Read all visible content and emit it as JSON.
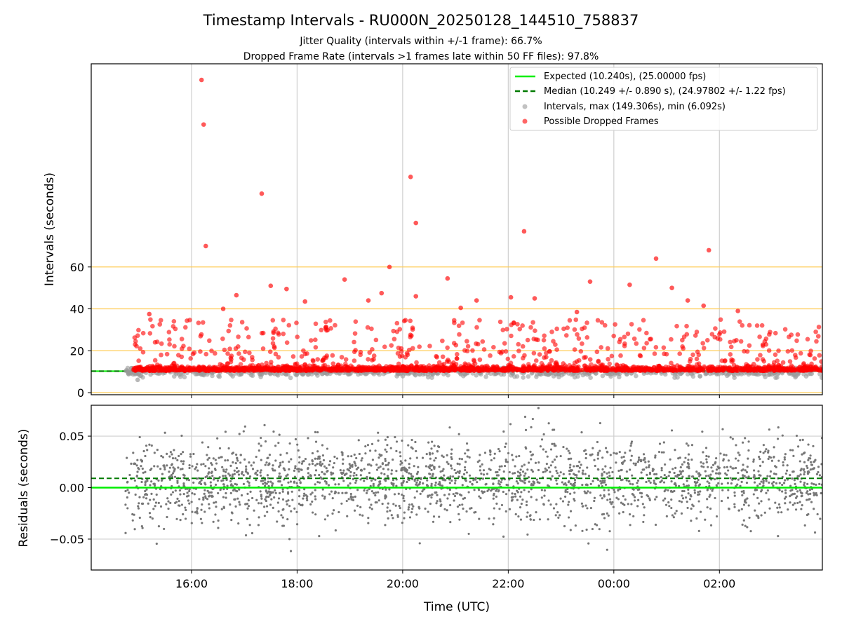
{
  "title": "Timestamp Intervals - RU000N_20250128_144510_758837",
  "subtitle_lines": [
    "Jitter Quality (intervals within +/-1 frame): 66.7%",
    "Dropped Frame Rate (intervals >1 frames late within 50 FF files): 97.8%"
  ],
  "colors": {
    "expected": "#00ee00",
    "median": "#007a00",
    "intervals": "#999999",
    "dropped": "#ff0000",
    "residuals": "#777777",
    "hlines": "#ffcc55",
    "grid": "#cfcfcf"
  },
  "chart_data": [
    {
      "type": "scatter",
      "panel": "top",
      "xlabel": "",
      "ylabel": "Intervals (seconds)",
      "xlim_hours": [
        14.1,
        27.95
      ],
      "ylim": [
        -1,
        157
      ],
      "yticks": [
        0,
        20,
        40,
        60
      ],
      "hlines": [
        0,
        20,
        40,
        60
      ],
      "xticks_hours": [
        16,
        18,
        20,
        22,
        24,
        26
      ],
      "grid": "x-only",
      "legend": {
        "placement": "top-right",
        "entries": [
          {
            "key": "expected",
            "label": "Expected (10.240s), (25.00000 fps)"
          },
          {
            "key": "median",
            "label": "Median (10.249 +/- 0.890 s), (24.97802 +/- 1.22 fps)"
          },
          {
            "key": "intervals",
            "label": "Intervals, max (149.306s), min (6.092s)"
          },
          {
            "key": "dropped",
            "label": "Possible Dropped Frames"
          }
        ]
      },
      "expected_value": 10.24,
      "median_value": 10.249,
      "data_start_hour": 14.75,
      "data_end_hour": 27.95,
      "baseline_interval": 10.24,
      "dropped_outliers": [
        {
          "t": 16.19,
          "y": 149.3
        },
        {
          "t": 16.23,
          "y": 128.0
        },
        {
          "t": 16.27,
          "y": 70.0
        },
        {
          "t": 17.33,
          "y": 95.0
        },
        {
          "t": 20.15,
          "y": 103.0
        },
        {
          "t": 20.25,
          "y": 81.0
        },
        {
          "t": 22.3,
          "y": 77.0
        },
        {
          "t": 19.75,
          "y": 60.0
        },
        {
          "t": 24.8,
          "y": 64.0
        },
        {
          "t": 25.8,
          "y": 68.0
        },
        {
          "t": 18.9,
          "y": 54.0
        },
        {
          "t": 20.85,
          "y": 54.5
        },
        {
          "t": 23.55,
          "y": 53.0
        },
        {
          "t": 24.3,
          "y": 51.5
        },
        {
          "t": 17.5,
          "y": 51.0
        },
        {
          "t": 17.8,
          "y": 49.5
        },
        {
          "t": 25.1,
          "y": 50.0
        },
        {
          "t": 16.85,
          "y": 46.5
        },
        {
          "t": 19.6,
          "y": 47.5
        },
        {
          "t": 20.25,
          "y": 46.0
        },
        {
          "t": 22.05,
          "y": 45.5
        },
        {
          "t": 15.2,
          "y": 37.5
        },
        {
          "t": 16.6,
          "y": 40.0
        },
        {
          "t": 18.15,
          "y": 43.5
        },
        {
          "t": 19.35,
          "y": 44.0
        },
        {
          "t": 21.1,
          "y": 40.5
        },
        {
          "t": 21.4,
          "y": 44.0
        },
        {
          "t": 22.5,
          "y": 45.0
        },
        {
          "t": 23.3,
          "y": 38.5
        },
        {
          "t": 25.4,
          "y": 44.0
        },
        {
          "t": 25.7,
          "y": 41.5
        },
        {
          "t": 26.35,
          "y": 39.0
        }
      ],
      "min_interval_point": {
        "t": 14.98,
        "y": 6.1
      }
    },
    {
      "type": "scatter",
      "panel": "bottom",
      "xlabel": "Time (UTC)",
      "ylabel": "Residuals (seconds)",
      "xlim_hours": [
        14.1,
        27.95
      ],
      "ylim": [
        -0.08,
        0.08
      ],
      "yticks": [
        -0.05,
        0.0,
        0.05
      ],
      "ytick_labels": [
        "−0.05",
        "0.00",
        "0.05"
      ],
      "xticks_hours": [
        16,
        18,
        20,
        22,
        24,
        26
      ],
      "xtick_labels": [
        "16:00",
        "18:00",
        "20:00",
        "22:00",
        "00:00",
        "02:00"
      ],
      "grid": "both",
      "expected_residual": 0.0,
      "median_residual": 0.009,
      "data_start_hour": 14.75,
      "data_end_hour": 27.95,
      "residual_spread_sd": 0.02
    }
  ]
}
